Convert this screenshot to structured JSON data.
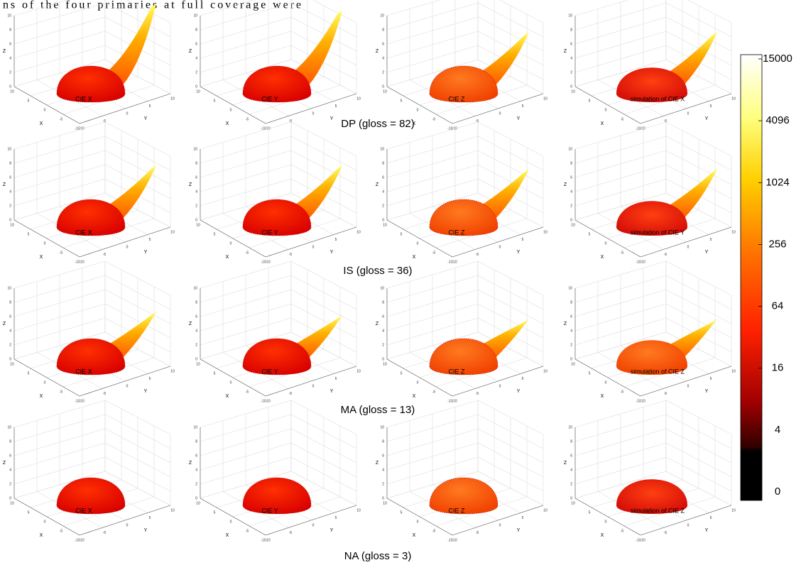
{
  "header_text": "ns of the four primaries at full coverage were",
  "rows": [
    {
      "label": "DP (gloss = 82)",
      "panels": [
        "CIE X",
        "CIE Y",
        "CIE Z",
        "simulation of CIE X"
      ]
    },
    {
      "label": "IS (gloss = 36)",
      "panels": [
        "CIE X",
        "CIE Y",
        "CIE Z",
        "simulation of CIE Y"
      ]
    },
    {
      "label": "MA (gloss = 13)",
      "panels": [
        "CIE X",
        "CIE Y",
        "CIE Z",
        "simulation of CIE Z"
      ]
    },
    {
      "label": "NA (gloss = 3)",
      "panels": [
        "CIE X",
        "CIE Y",
        "CIE Z",
        "simulation of CIE Z"
      ]
    }
  ],
  "axes": {
    "x_label": "X",
    "y_label": "Y",
    "z_label": "Z",
    "z_ticks": [
      0,
      2,
      4,
      6,
      8,
      10
    ],
    "xy_ticks": [
      10,
      5,
      0,
      -5,
      -10
    ]
  },
  "colorbar": {
    "ticks": [
      15000,
      4096,
      1024,
      256,
      64,
      16,
      4,
      0
    ]
  }
}
